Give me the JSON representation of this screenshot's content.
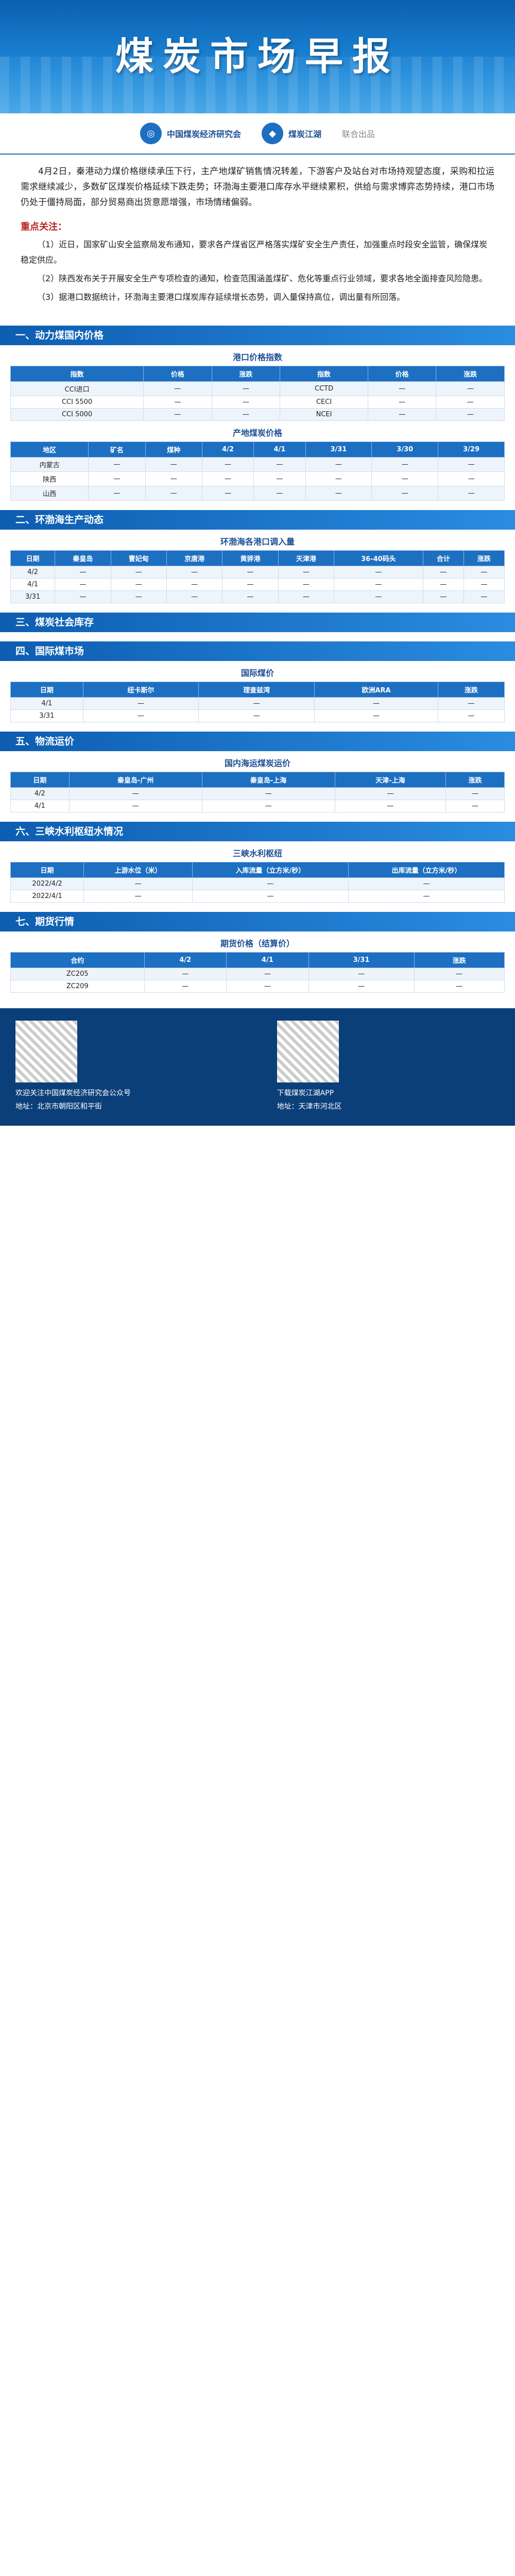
{
  "banner": {
    "title": "煤炭市场早报"
  },
  "logos": {
    "left": "中国煤炭经济研究会",
    "right": "煤炭江湖",
    "suffix": "联合出品"
  },
  "intro": "4月2日，秦港动力煤价格继续承压下行，主产地煤矿销售情况转差，下游客户及站台对市场持观望态度，采购和拉运需求继续减少，多数矿区煤炭价格延续下跌走势；环渤海主要港口库存水平继续累积，供给与需求博弈态势持续，港口市场仍处于僵持局面，部分贸易商出货意愿增强，市场情绪偏弱。",
  "news_title": "重点关注：",
  "news": [
    "（1）近日，国家矿山安全监察局发布通知，要求各产煤省区严格落实煤矿安全生产责任，加强重点时段安全监管，确保煤炭稳定供应。",
    "（2）陕西发布关于开展安全生产专项检查的通知，检查范围涵盖煤矿、危化等重点行业领域，要求各地全面排查风险隐患。",
    "（3）据港口数据统计，环渤海主要港口煤炭库存延续增长态势，调入量保持高位，调出量有所回落。"
  ],
  "sections": {
    "s1": "一、动力煤国内价格",
    "s2": "二、环渤海生产动态",
    "s3": "三、煤炭社会库存",
    "s4": "四、国际煤市场",
    "s5": "五、物流运价",
    "s6": "六、三峡水利枢纽水情况",
    "s7": "七、期货行情"
  },
  "t1": {
    "caption": "港口价格指数",
    "headers": [
      "指数",
      "价格",
      "涨跌",
      "指数",
      "价格",
      "涨跌"
    ],
    "rows": [
      [
        "CCI进口",
        "—",
        "—",
        "CCTD",
        "—",
        "—"
      ],
      [
        "CCI 5500",
        "—",
        "—",
        "CECI",
        "—",
        "—"
      ],
      [
        "CCI 5000",
        "—",
        "—",
        "NCEI",
        "—",
        "—"
      ]
    ]
  },
  "t2": {
    "caption": "产地煤炭价格",
    "headers": [
      "地区",
      "矿名",
      "煤种",
      "4/2",
      "4/1",
      "3/31",
      "3/30",
      "3/29"
    ],
    "rows": [
      [
        "内蒙古",
        "—",
        "—",
        "—",
        "—",
        "—",
        "—",
        "—"
      ],
      [
        "陕西",
        "—",
        "—",
        "—",
        "—",
        "—",
        "—",
        "—"
      ],
      [
        "山西",
        "—",
        "—",
        "—",
        "—",
        "—",
        "—",
        "—"
      ]
    ]
  },
  "t3": {
    "caption": "环渤海各港口调入量",
    "headers": [
      "日期",
      "秦皇岛",
      "曹妃甸",
      "京唐港",
      "黄骅港",
      "天津港",
      "36-40码头",
      "合计",
      "涨跌"
    ],
    "rows": [
      [
        "4/2",
        "—",
        "—",
        "—",
        "—",
        "—",
        "—",
        "—",
        "—"
      ],
      [
        "4/1",
        "—",
        "—",
        "—",
        "—",
        "—",
        "—",
        "—",
        "—"
      ],
      [
        "3/31",
        "—",
        "—",
        "—",
        "—",
        "—",
        "—",
        "—",
        "—"
      ]
    ]
  },
  "t4": {
    "caption": "国际煤价",
    "headers": [
      "日期",
      "纽卡斯尔",
      "理查兹湾",
      "欧洲ARA",
      "涨跌"
    ],
    "rows": [
      [
        "4/1",
        "—",
        "—",
        "—",
        "—"
      ],
      [
        "3/31",
        "—",
        "—",
        "—",
        "—"
      ]
    ]
  },
  "t5": {
    "caption": "国内海运煤炭运价",
    "headers": [
      "日期",
      "秦皇岛-广州",
      "秦皇岛-上海",
      "天津-上海",
      "涨跌"
    ],
    "rows": [
      [
        "4/2",
        "—",
        "—",
        "—",
        "—"
      ],
      [
        "4/1",
        "—",
        "—",
        "—",
        "—"
      ]
    ]
  },
  "t6": {
    "caption": "三峡水利枢纽",
    "headers": [
      "日期",
      "上游水位（米）",
      "入库流量（立方米/秒）",
      "出库流量（立方米/秒）"
    ],
    "rows": [
      [
        "2022/4/2",
        "—",
        "—",
        "—"
      ],
      [
        "2022/4/1",
        "—",
        "—",
        "—"
      ]
    ]
  },
  "t7": {
    "caption": "期货价格（结算价）",
    "headers": [
      "合约",
      "4/2",
      "4/1",
      "3/31",
      "涨跌"
    ],
    "rows": [
      [
        "ZC205",
        "—",
        "—",
        "—",
        "—"
      ],
      [
        "ZC209",
        "—",
        "—",
        "—",
        "—"
      ]
    ]
  },
  "footer": {
    "left": "欢迎关注中国煤炭经济研究会公众号",
    "right": "下载煤炭江湖APP",
    "addr_l": "地址：北京市朝阳区和平街",
    "addr_r": "地址：天津市河北区"
  },
  "colors": {
    "primary": "#1d6fc1",
    "banner": "#0b5fb0"
  },
  "icons": {
    "logo": "cbere-logo-icon",
    "qr": "qr-code-icon"
  }
}
